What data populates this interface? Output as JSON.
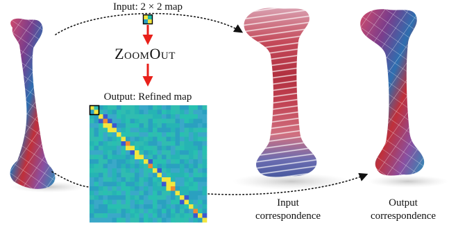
{
  "labels": {
    "input_map": "Input: 2 × 2 map",
    "method": "ZoomOut",
    "output_map": "Output: Refined map",
    "input_correspondence_line1": "Input",
    "input_correspondence_line2": "correspondence",
    "output_correspondence_line1": "Output",
    "output_correspondence_line2": "correspondence"
  },
  "colors": {
    "arrow": "#e8201a",
    "matrix_background": "#2cb8b8",
    "dotted_arrow": "#111111",
    "highlight_box": "#000000"
  },
  "figures": {
    "source_shape": "bone-mesh-colored-texture",
    "input_shape": "bone-mesh-stripe-texture",
    "output_shape": "bone-mesh-colored-texture",
    "matrix": "functional-map-matrix-heatmap"
  }
}
